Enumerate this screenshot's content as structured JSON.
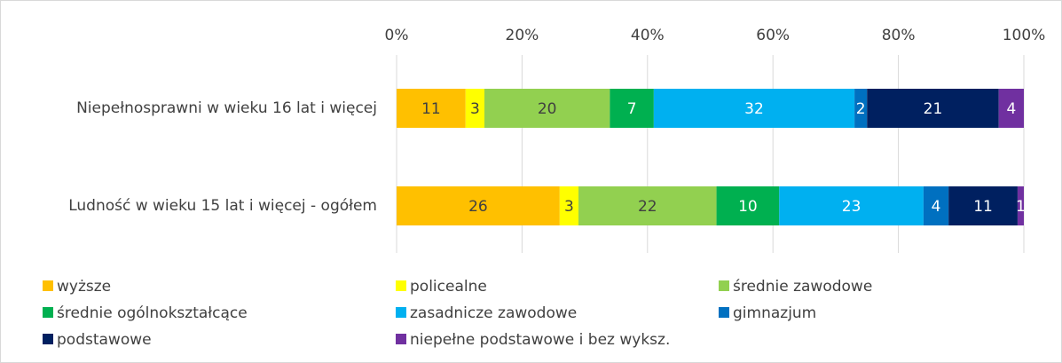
{
  "chart_data": {
    "type": "stacked_bar_horizontal",
    "categories": [
      "Niepełnosprawni w wieku 16 lat i więcej",
      "Ludność w wieku 15 lat i więcej - ogółem"
    ],
    "series": [
      {
        "name": "wyższe",
        "color": "#FFC000",
        "values": [
          11,
          26
        ]
      },
      {
        "name": "policealne",
        "color": "#FFFF00",
        "values": [
          3,
          3
        ]
      },
      {
        "name": "średnie zawodowe",
        "color": "#92D050",
        "values": [
          20,
          22
        ]
      },
      {
        "name": "średnie ogólnokształcące",
        "color": "#00B050",
        "values": [
          7,
          10
        ]
      },
      {
        "name": "zasadnicze zawodowe",
        "color": "#00B0F0",
        "values": [
          32,
          23
        ]
      },
      {
        "name": "gimnazjum",
        "color": "#0070C0",
        "values": [
          2,
          4
        ]
      },
      {
        "name": "podstawowe",
        "color": "#002060",
        "values": [
          21,
          11
        ]
      },
      {
        "name": "niepełne podstawowe i bez wyksz.",
        "color": "#7030A0",
        "values": [
          4,
          1
        ]
      }
    ],
    "xlim": [
      0,
      100
    ],
    "xticks": [
      {
        "value": 0,
        "label": "0%"
      },
      {
        "value": 20,
        "label": "20%"
      },
      {
        "value": 40,
        "label": "40%"
      },
      {
        "value": 60,
        "label": "60%"
      },
      {
        "value": 80,
        "label": "80%"
      },
      {
        "value": 100,
        "label": "100%"
      }
    ],
    "grid": true,
    "legend": "bottom"
  }
}
